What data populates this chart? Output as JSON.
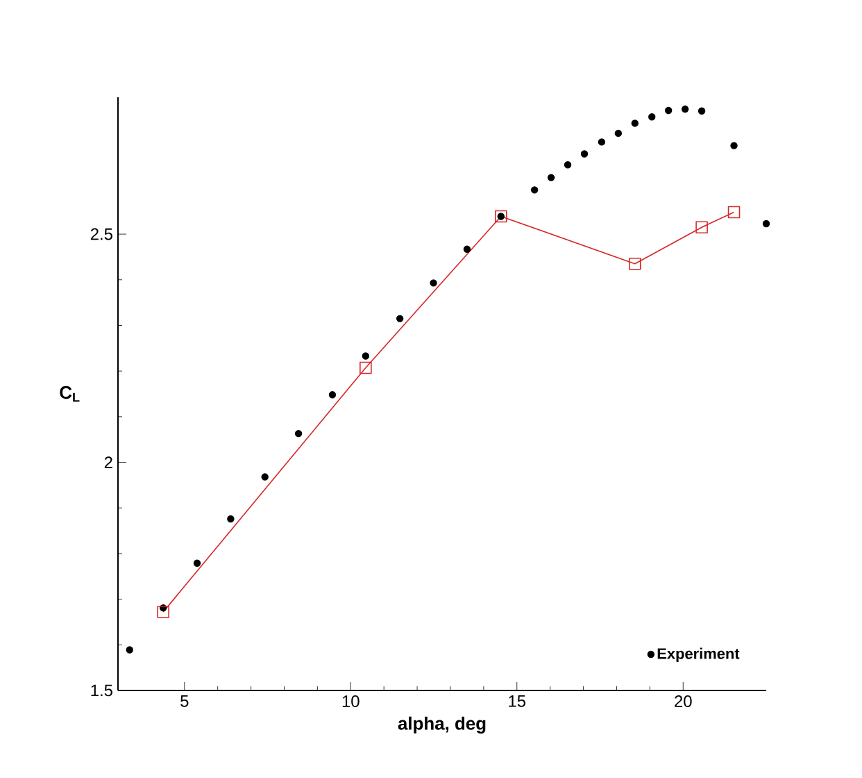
{
  "chart_data": {
    "type": "scatter",
    "xlabel": "alpha, deg",
    "ylabel": "C$_{L}$",
    "xlim": [
      3,
      22.5
    ],
    "ylim": [
      1.5,
      2.8
    ],
    "xticks": [
      5,
      10,
      15,
      20
    ],
    "yticks": [
      1.5,
      2,
      2.5
    ],
    "legend": "bottom right",
    "grid": false,
    "series": [
      {
        "name": "Experiment",
        "marker": "circle",
        "color": "#000000",
        "x": [
          3.35,
          4.36,
          5.38,
          6.39,
          7.42,
          8.43,
          9.45,
          10.45,
          11.48,
          12.49,
          13.5,
          14.52,
          15.53,
          16.03,
          16.53,
          17.03,
          17.55,
          18.05,
          18.55,
          19.06,
          19.56,
          20.06,
          20.56,
          21.53,
          22.5
        ],
        "values": [
          1.589,
          1.681,
          1.779,
          1.876,
          1.968,
          2.063,
          2.148,
          2.233,
          2.315,
          2.393,
          2.467,
          2.539,
          2.597,
          2.624,
          2.652,
          2.676,
          2.702,
          2.721,
          2.743,
          2.757,
          2.771,
          2.774,
          2.77,
          2.694,
          2.523
        ]
      },
      {
        "type": "line",
        "marker": "square",
        "line_style": "solid",
        "color": "#d62728",
        "x": [
          4.36,
          10.45,
          14.52,
          18.55,
          20.56,
          21.53
        ],
        "values": [
          1.672,
          2.207,
          2.539,
          2.435,
          2.515,
          2.548
        ]
      }
    ]
  }
}
